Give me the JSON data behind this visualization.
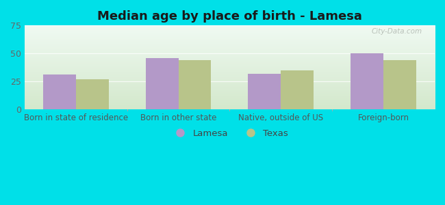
{
  "title": "Median age by place of birth - Lamesa",
  "categories": [
    "Born in state of residence",
    "Born in other state",
    "Native, outside of US",
    "Foreign-born"
  ],
  "lamesa_values": [
    31,
    46,
    32,
    50
  ],
  "texas_values": [
    27,
    44,
    35,
    44
  ],
  "bar_color_lamesa": "#b399c8",
  "bar_color_texas": "#b8c48a",
  "ylim": [
    0,
    75
  ],
  "yticks": [
    0,
    25,
    50,
    75
  ],
  "outer_bg": "#00e0e8",
  "legend_lamesa": "Lamesa",
  "legend_texas": "Texas",
  "title_fontsize": 13,
  "tick_fontsize": 9,
  "label_fontsize": 8.5,
  "bar_width": 0.32,
  "watermark": "City-Data.com",
  "bg_top_left": "#eaf7f2",
  "bg_bottom_right": "#d4e8cc"
}
